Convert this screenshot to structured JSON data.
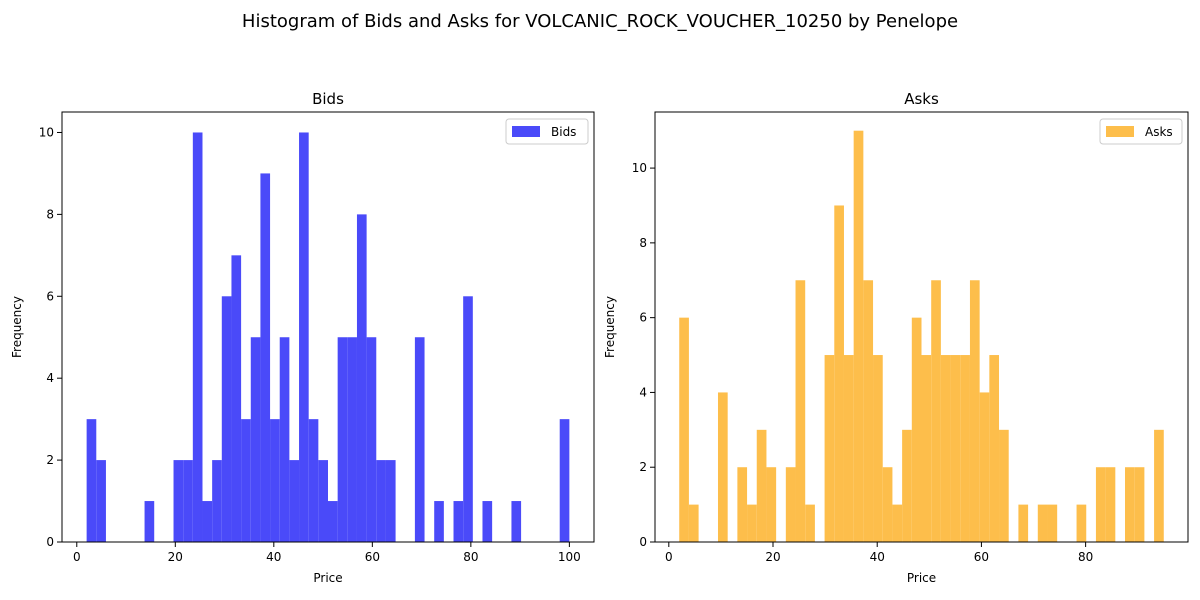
{
  "figure": {
    "suptitle": "Histogram of Bids and Asks for VOLCANIC_ROCK_VOUCHER_10250 by Penelope"
  },
  "chart_data": [
    {
      "type": "bar",
      "title": "Bids",
      "xlabel": "Price",
      "ylabel": "Frequency",
      "legend": "top-right",
      "series": [
        {
          "name": "Bids",
          "color": "#4a4af9"
        }
      ],
      "bin_width": 1.96,
      "xlim": [
        -3.0,
        105.0
      ],
      "ylim": [
        0,
        10.5
      ],
      "xticks": [
        0,
        20,
        40,
        60,
        80,
        100
      ],
      "yticks": [
        0,
        2,
        4,
        6,
        8,
        10
      ],
      "bins": [
        {
          "x": 2.0,
          "value": 3
        },
        {
          "x": 3.96,
          "value": 2
        },
        {
          "x": 5.92,
          "value": 0
        },
        {
          "x": 7.88,
          "value": 0
        },
        {
          "x": 9.84,
          "value": 0
        },
        {
          "x": 11.8,
          "value": 0
        },
        {
          "x": 13.76,
          "value": 1
        },
        {
          "x": 15.72,
          "value": 0
        },
        {
          "x": 17.68,
          "value": 0
        },
        {
          "x": 19.64,
          "value": 2
        },
        {
          "x": 21.6,
          "value": 2
        },
        {
          "x": 23.56,
          "value": 10
        },
        {
          "x": 25.52,
          "value": 1
        },
        {
          "x": 27.48,
          "value": 2
        },
        {
          "x": 29.44,
          "value": 6
        },
        {
          "x": 31.4,
          "value": 7
        },
        {
          "x": 33.36,
          "value": 3
        },
        {
          "x": 35.32,
          "value": 5
        },
        {
          "x": 37.28,
          "value": 9
        },
        {
          "x": 39.24,
          "value": 3
        },
        {
          "x": 41.2,
          "value": 5
        },
        {
          "x": 43.16,
          "value": 2
        },
        {
          "x": 45.12,
          "value": 10
        },
        {
          "x": 47.08,
          "value": 3
        },
        {
          "x": 49.04,
          "value": 2
        },
        {
          "x": 51.0,
          "value": 1
        },
        {
          "x": 52.96,
          "value": 5
        },
        {
          "x": 54.92,
          "value": 5
        },
        {
          "x": 56.88,
          "value": 8
        },
        {
          "x": 58.84,
          "value": 5
        },
        {
          "x": 60.8,
          "value": 2
        },
        {
          "x": 62.76,
          "value": 2
        },
        {
          "x": 64.72,
          "value": 0
        },
        {
          "x": 66.68,
          "value": 0
        },
        {
          "x": 68.64,
          "value": 5
        },
        {
          "x": 70.6,
          "value": 0
        },
        {
          "x": 72.56,
          "value": 1
        },
        {
          "x": 74.52,
          "value": 0
        },
        {
          "x": 76.48,
          "value": 1
        },
        {
          "x": 78.44,
          "value": 6
        },
        {
          "x": 80.4,
          "value": 0
        },
        {
          "x": 82.36,
          "value": 1
        },
        {
          "x": 84.32,
          "value": 0
        },
        {
          "x": 86.28,
          "value": 0
        },
        {
          "x": 88.24,
          "value": 1
        },
        {
          "x": 90.2,
          "value": 0
        },
        {
          "x": 92.16,
          "value": 0
        },
        {
          "x": 94.12,
          "value": 0
        },
        {
          "x": 96.08,
          "value": 0
        },
        {
          "x": 98.04,
          "value": 3
        }
      ]
    },
    {
      "type": "bar",
      "title": "Asks",
      "xlabel": "Price",
      "ylabel": "Frequency",
      "legend": "top-right",
      "series": [
        {
          "name": "Asks",
          "color": "#fdbe4b"
        }
      ],
      "bin_width": 1.86,
      "xlim": [
        -2.65,
        99.65
      ],
      "ylim": [
        0,
        11.5
      ],
      "xticks": [
        0,
        20,
        40,
        60,
        80
      ],
      "yticks": [
        0,
        2,
        4,
        6,
        8,
        10
      ],
      "bins": [
        {
          "x": 2.0,
          "value": 6
        },
        {
          "x": 3.86,
          "value": 1
        },
        {
          "x": 5.72,
          "value": 0
        },
        {
          "x": 7.58,
          "value": 0
        },
        {
          "x": 9.44,
          "value": 4
        },
        {
          "x": 11.3,
          "value": 0
        },
        {
          "x": 13.16,
          "value": 2
        },
        {
          "x": 15.02,
          "value": 1
        },
        {
          "x": 16.88,
          "value": 3
        },
        {
          "x": 18.74,
          "value": 2
        },
        {
          "x": 20.6,
          "value": 0
        },
        {
          "x": 22.46,
          "value": 2
        },
        {
          "x": 24.32,
          "value": 7
        },
        {
          "x": 26.18,
          "value": 1
        },
        {
          "x": 28.04,
          "value": 0
        },
        {
          "x": 29.9,
          "value": 5
        },
        {
          "x": 31.76,
          "value": 9
        },
        {
          "x": 33.62,
          "value": 5
        },
        {
          "x": 35.48,
          "value": 11
        },
        {
          "x": 37.34,
          "value": 7
        },
        {
          "x": 39.2,
          "value": 5
        },
        {
          "x": 41.06,
          "value": 2
        },
        {
          "x": 42.92,
          "value": 1
        },
        {
          "x": 44.78,
          "value": 3
        },
        {
          "x": 46.64,
          "value": 6
        },
        {
          "x": 48.5,
          "value": 5
        },
        {
          "x": 50.36,
          "value": 7
        },
        {
          "x": 52.22,
          "value": 5
        },
        {
          "x": 54.08,
          "value": 5
        },
        {
          "x": 55.94,
          "value": 5
        },
        {
          "x": 57.8,
          "value": 7
        },
        {
          "x": 59.66,
          "value": 4
        },
        {
          "x": 61.52,
          "value": 5
        },
        {
          "x": 63.38,
          "value": 3
        },
        {
          "x": 65.24,
          "value": 0
        },
        {
          "x": 67.1,
          "value": 1
        },
        {
          "x": 68.96,
          "value": 0
        },
        {
          "x": 70.82,
          "value": 1
        },
        {
          "x": 72.68,
          "value": 1
        },
        {
          "x": 74.54,
          "value": 0
        },
        {
          "x": 76.4,
          "value": 0
        },
        {
          "x": 78.26,
          "value": 1
        },
        {
          "x": 80.12,
          "value": 0
        },
        {
          "x": 81.98,
          "value": 2
        },
        {
          "x": 83.84,
          "value": 2
        },
        {
          "x": 85.7,
          "value": 0
        },
        {
          "x": 87.56,
          "value": 2
        },
        {
          "x": 89.42,
          "value": 2
        },
        {
          "x": 91.28,
          "value": 0
        },
        {
          "x": 93.14,
          "value": 3
        }
      ]
    }
  ]
}
